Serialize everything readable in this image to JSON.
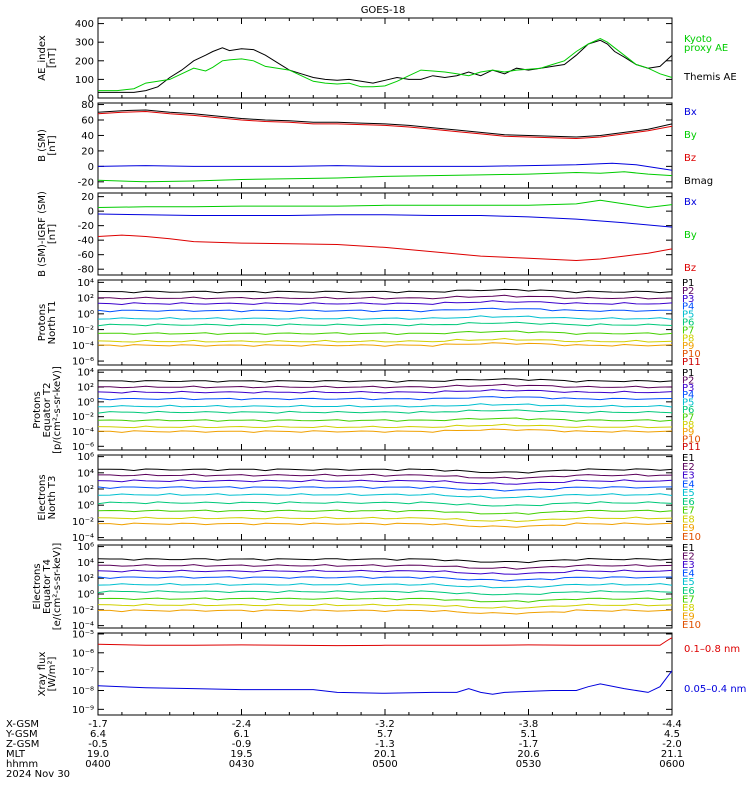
{
  "title": "GOES-18",
  "colors": {
    "black": "#000000",
    "blue": "#0000dd",
    "green": "#00cc00",
    "red": "#dd0000",
    "proton_channels": [
      "#000000",
      "#5a005a",
      "#3a00cc",
      "#0050ff",
      "#00bfd0",
      "#00c87a",
      "#44d000",
      "#d0d000",
      "#f0a000",
      "#e05000",
      "#cc0000"
    ],
    "electron_channels": [
      "#000000",
      "#5a005a",
      "#3a00cc",
      "#0050ff",
      "#00bfd0",
      "#00c87a",
      "#44d000",
      "#d0d000",
      "#f0a000",
      "#e05000",
      "#cc0000"
    ]
  },
  "chart_data": [
    {
      "type": "line",
      "id": "ae",
      "ylabel": [
        "AE_index",
        "[nT]"
      ],
      "yticks": [
        "0",
        "100",
        "200",
        "300",
        "400"
      ],
      "ylim": [
        0,
        430
      ],
      "legend": [
        {
          "text": "Kyoto",
          "color": "#00cc00"
        },
        {
          "text": "proxy AE",
          "color": "#00cc00"
        },
        {
          "text": "Themis AE",
          "color": "#000000"
        }
      ],
      "series": [
        {
          "name": "Themis AE",
          "color": "#000000",
          "x": [
            0,
            8,
            15,
            20,
            25,
            30,
            35,
            40,
            45,
            48,
            52,
            55,
            60,
            65,
            70,
            75,
            80,
            85,
            90,
            95,
            100,
            105,
            110,
            115,
            120,
            125,
            130,
            135,
            140,
            145,
            150,
            155,
            160,
            165,
            170,
            175,
            180,
            185,
            190,
            195,
            200,
            205,
            210,
            213,
            216,
            220,
            225,
            230,
            235,
            240
          ],
          "y": [
            30,
            30,
            30,
            40,
            60,
            110,
            150,
            200,
            230,
            250,
            270,
            255,
            265,
            260,
            230,
            190,
            150,
            130,
            110,
            100,
            95,
            100,
            90,
            80,
            95,
            110,
            100,
            100,
            120,
            110,
            120,
            140,
            120,
            150,
            130,
            160,
            150,
            160,
            170,
            180,
            230,
            290,
            310,
            290,
            250,
            220,
            180,
            160,
            170,
            230
          ]
        },
        {
          "name": "Kyoto proxy AE",
          "color": "#00cc00",
          "x": [
            0,
            8,
            15,
            20,
            25,
            30,
            35,
            40,
            45,
            48,
            52,
            55,
            60,
            65,
            70,
            75,
            80,
            85,
            90,
            95,
            100,
            105,
            110,
            115,
            120,
            125,
            130,
            135,
            140,
            145,
            150,
            155,
            160,
            165,
            170,
            175,
            180,
            185,
            190,
            195,
            200,
            205,
            210,
            213,
            216,
            220,
            225,
            230,
            235,
            240
          ],
          "y": [
            40,
            40,
            50,
            80,
            90,
            100,
            130,
            160,
            145,
            165,
            200,
            205,
            210,
            200,
            170,
            160,
            150,
            120,
            90,
            80,
            75,
            80,
            60,
            60,
            65,
            90,
            120,
            150,
            145,
            140,
            130,
            120,
            140,
            150,
            140,
            150,
            155,
            160,
            180,
            200,
            250,
            290,
            320,
            300,
            270,
            230,
            180,
            160,
            130,
            110
          ]
        }
      ]
    },
    {
      "type": "line",
      "id": "bsm",
      "ylabel": [
        "B (SM)",
        "[nT]"
      ],
      "yticks": [
        "-20",
        "0",
        "20",
        "40",
        "60",
        "80"
      ],
      "ylim": [
        -28,
        82
      ],
      "legend": [
        {
          "text": "Bx",
          "color": "#0000dd"
        },
        {
          "text": "By",
          "color": "#00cc00"
        },
        {
          "text": "Bz",
          "color": "#dd0000"
        },
        {
          "text": "Bmag",
          "color": "#000000"
        }
      ],
      "series": [
        {
          "name": "Bmag",
          "color": "#000000",
          "x": [
            0,
            10,
            20,
            30,
            40,
            50,
            60,
            70,
            80,
            90,
            100,
            110,
            120,
            130,
            140,
            150,
            160,
            170,
            180,
            190,
            200,
            210,
            220,
            230,
            240
          ],
          "y": [
            70,
            72,
            73,
            70,
            68,
            65,
            62,
            60,
            59,
            57,
            57,
            56,
            55,
            53,
            50,
            47,
            44,
            41,
            40,
            39,
            38,
            40,
            44,
            48,
            55
          ]
        },
        {
          "name": "Bz",
          "color": "#dd0000",
          "x": [
            0,
            10,
            20,
            30,
            40,
            50,
            60,
            70,
            80,
            90,
            100,
            110,
            120,
            130,
            140,
            150,
            160,
            170,
            180,
            190,
            200,
            210,
            220,
            230,
            240
          ],
          "y": [
            68,
            70,
            71,
            68,
            66,
            63,
            60,
            58,
            57,
            55,
            55,
            54,
            53,
            51,
            48,
            45,
            42,
            39,
            38,
            37,
            36,
            38,
            42,
            46,
            52
          ]
        },
        {
          "name": "Bx",
          "color": "#0000dd",
          "x": [
            0,
            20,
            40,
            60,
            80,
            100,
            120,
            140,
            160,
            180,
            200,
            215,
            225,
            240
          ],
          "y": [
            0,
            1,
            0,
            0,
            0,
            1,
            0,
            0,
            0,
            1,
            2,
            4,
            2,
            -5
          ]
        },
        {
          "name": "By",
          "color": "#00cc00",
          "x": [
            0,
            20,
            40,
            60,
            80,
            100,
            120,
            140,
            160,
            180,
            200,
            210,
            220,
            230,
            240
          ],
          "y": [
            -18,
            -20,
            -19,
            -17,
            -16,
            -15,
            -13,
            -12,
            -11,
            -10,
            -8,
            -9,
            -7,
            -10,
            -12
          ]
        }
      ]
    },
    {
      "type": "line",
      "id": "bigrf",
      "ylabel": [
        "B (SM)-IGRF (SM)",
        "[nT]"
      ],
      "yticks": [
        "-80",
        "-60",
        "-40",
        "-20",
        "0",
        "20"
      ],
      "ylim": [
        -88,
        25
      ],
      "legend": [
        {
          "text": "Bx",
          "color": "#0000dd"
        },
        {
          "text": "By",
          "color": "#00cc00"
        },
        {
          "text": "Bz",
          "color": "#dd0000"
        }
      ],
      "series": [
        {
          "name": "Bx",
          "color": "#0000dd",
          "x": [
            0,
            20,
            40,
            60,
            80,
            100,
            120,
            140,
            160,
            180,
            200,
            220,
            240
          ],
          "y": [
            -4,
            -5,
            -6,
            -6,
            -6,
            -5,
            -5,
            -6,
            -6,
            -8,
            -11,
            -16,
            -22
          ]
        },
        {
          "name": "By",
          "color": "#00cc00",
          "x": [
            0,
            20,
            40,
            60,
            80,
            100,
            120,
            140,
            160,
            180,
            200,
            210,
            220,
            230,
            240
          ],
          "y": [
            5,
            6,
            6,
            7,
            7,
            7,
            8,
            8,
            8,
            8,
            10,
            15,
            10,
            5,
            9
          ]
        },
        {
          "name": "Bz",
          "color": "#dd0000",
          "x": [
            0,
            10,
            20,
            30,
            40,
            60,
            80,
            100,
            120,
            140,
            160,
            180,
            200,
            210,
            220,
            230,
            240
          ],
          "y": [
            -35,
            -33,
            -35,
            -38,
            -42,
            -44,
            -45,
            -46,
            -50,
            -56,
            -62,
            -65,
            -68,
            -66,
            -62,
            -58,
            -52
          ]
        }
      ]
    },
    {
      "type": "line",
      "id": "protons_t1",
      "ylabel": [
        "Protons",
        "North T1"
      ],
      "yscale": "log",
      "yticks": [
        "10⁻⁶",
        "10⁻⁴",
        "10⁻²",
        "10⁰",
        "10²",
        "10⁴"
      ],
      "ylim": [
        -6.5,
        4.3
      ],
      "legend": [
        "P1",
        "P2",
        "P3",
        "P4",
        "P5",
        "P6",
        "P7",
        "P8",
        "P9",
        "P10",
        "P11"
      ],
      "series": [
        {
          "name": "P1",
          "log10": 2.8
        },
        {
          "name": "P2",
          "log10": 2.0
        },
        {
          "name": "P3",
          "log10": 1.3
        },
        {
          "name": "P4",
          "log10": 0.4
        },
        {
          "name": "P5",
          "log10": -0.6
        },
        {
          "name": "P6",
          "log10": -1.4
        },
        {
          "name": "P7",
          "log10": -2.5
        },
        {
          "name": "P8",
          "log10": -3.5
        },
        {
          "name": "P9",
          "log10": -4.0
        }
      ]
    },
    {
      "type": "line",
      "id": "protons_t2",
      "ylabel": [
        "Protons",
        "Equator T2",
        "[p/(cm²-s-sr-keV)]"
      ],
      "yscale": "log",
      "yticks": [
        "10⁻⁶",
        "10⁻⁴",
        "10⁻²",
        "10⁰",
        "10²",
        "10⁴"
      ],
      "ylim": [
        -6.5,
        4.3
      ],
      "legend": [
        "P1",
        "P2",
        "P3",
        "P4",
        "P5",
        "P6",
        "P7",
        "P8",
        "P9",
        "P10",
        "P11"
      ],
      "series": [
        {
          "name": "P1",
          "log10": 2.8
        },
        {
          "name": "P2",
          "log10": 2.0
        },
        {
          "name": "P3",
          "log10": 1.3
        },
        {
          "name": "P4",
          "log10": 0.4
        },
        {
          "name": "P5",
          "log10": -0.6
        },
        {
          "name": "P6",
          "log10": -1.4
        },
        {
          "name": "P7",
          "log10": -2.5
        },
        {
          "name": "P8",
          "log10": -3.4
        },
        {
          "name": "P9",
          "log10": -4.0
        }
      ]
    },
    {
      "type": "line",
      "id": "electrons_t3",
      "ylabel": [
        "Electrons",
        "North T3"
      ],
      "yscale": "log",
      "yticks": [
        "10⁻⁴",
        "10⁻²",
        "10⁰",
        "10²",
        "10⁴",
        "10⁶"
      ],
      "ylim": [
        -4.3,
        6.2
      ],
      "legend": [
        "E1",
        "E2",
        "E3",
        "E4",
        "E5",
        "E6",
        "E7",
        "E8",
        "E9",
        "E10"
      ],
      "series": [
        {
          "name": "E1",
          "log10": 4.4
        },
        {
          "name": "E2",
          "log10": 3.7
        },
        {
          "name": "E3",
          "log10": 3.0
        },
        {
          "name": "E4",
          "log10": 2.2
        },
        {
          "name": "E5",
          "log10": 1.3
        },
        {
          "name": "E6",
          "log10": 0.3
        },
        {
          "name": "E7",
          "log10": -0.7
        },
        {
          "name": "E8",
          "log10": -1.6
        },
        {
          "name": "E9",
          "log10": -2.3
        }
      ]
    },
    {
      "type": "line",
      "id": "electrons_t4",
      "ylabel": [
        "Electrons",
        "Equator T4",
        "[e/(cm²-s-sr-keV)]"
      ],
      "yscale": "log",
      "yticks": [
        "10⁻⁴",
        "10⁻²",
        "10⁰",
        "10²",
        "10⁴",
        "10⁶"
      ],
      "ylim": [
        -4.3,
        6.2
      ],
      "legend": [
        "E1",
        "E2",
        "E3",
        "E4",
        "E5",
        "E6",
        "E7",
        "E8",
        "E9",
        "E10"
      ],
      "series": [
        {
          "name": "E1",
          "log10": 4.4
        },
        {
          "name": "E2",
          "log10": 3.6
        },
        {
          "name": "E3",
          "log10": 2.9
        },
        {
          "name": "E4",
          "log10": 2.1
        },
        {
          "name": "E5",
          "log10": 1.2
        },
        {
          "name": "E6",
          "log10": 0.3
        },
        {
          "name": "E7",
          "log10": -0.6
        },
        {
          "name": "E8",
          "log10": -1.4
        },
        {
          "name": "E9",
          "log10": -2.1
        }
      ]
    },
    {
      "type": "line",
      "id": "xray",
      "ylabel": [
        "Xray flux",
        "[W/m²]"
      ],
      "yscale": "log",
      "yticks": [
        "10⁻⁹",
        "10⁻⁸",
        "10⁻⁷",
        "10⁻⁶",
        "10⁻⁵"
      ],
      "ylim": [
        -9.3,
        -4.95
      ],
      "legend": [
        {
          "text": "0.1–0.8 nm",
          "color": "#dd0000"
        },
        {
          "text": "0.05–0.4 nm",
          "color": "#0000dd"
        }
      ],
      "series": [
        {
          "name": "0.1–0.8 nm",
          "color": "#dd0000",
          "x": [
            0,
            20,
            40,
            60,
            80,
            100,
            120,
            140,
            160,
            180,
            200,
            220,
            235,
            238,
            240
          ],
          "y": [
            -5.55,
            -5.6,
            -5.6,
            -5.58,
            -5.6,
            -5.62,
            -5.6,
            -5.6,
            -5.6,
            -5.58,
            -5.6,
            -5.6,
            -5.6,
            -5.35,
            -5.2
          ]
        },
        {
          "name": "0.05–0.4 nm",
          "color": "#0000dd",
          "x": [
            0,
            20,
            40,
            60,
            80,
            90,
            100,
            120,
            140,
            150,
            155,
            160,
            165,
            170,
            180,
            190,
            200,
            205,
            210,
            220,
            230,
            235,
            240
          ],
          "y": [
            -7.75,
            -7.85,
            -7.9,
            -7.95,
            -7.95,
            -7.95,
            -8.1,
            -8.15,
            -8.1,
            -8.1,
            -7.9,
            -8.1,
            -8.2,
            -8.1,
            -8.05,
            -8.0,
            -8.0,
            -7.8,
            -7.65,
            -7.9,
            -8.1,
            -7.8,
            -6.95
          ]
        }
      ]
    }
  ],
  "xaxis": {
    "rows": [
      {
        "label": "X-GSM",
        "values": [
          "-1.7",
          "-2.4",
          "-3.2",
          "-3.8",
          "-4.4"
        ]
      },
      {
        "label": "Y-GSM",
        "values": [
          "6.4",
          "6.1",
          "5.7",
          "5.1",
          "4.5"
        ]
      },
      {
        "label": "Z-GSM",
        "values": [
          "-0.5",
          "-0.9",
          "-1.3",
          "-1.7",
          "-2.0"
        ]
      },
      {
        "label": "MLT",
        "values": [
          "19.0",
          "19.5",
          "20.1",
          "20.6",
          "21.1"
        ]
      },
      {
        "label": "hhmm",
        "values": [
          "0400",
          "0430",
          "0500",
          "0530",
          "0600"
        ]
      }
    ],
    "date": "2024 Nov 30"
  }
}
